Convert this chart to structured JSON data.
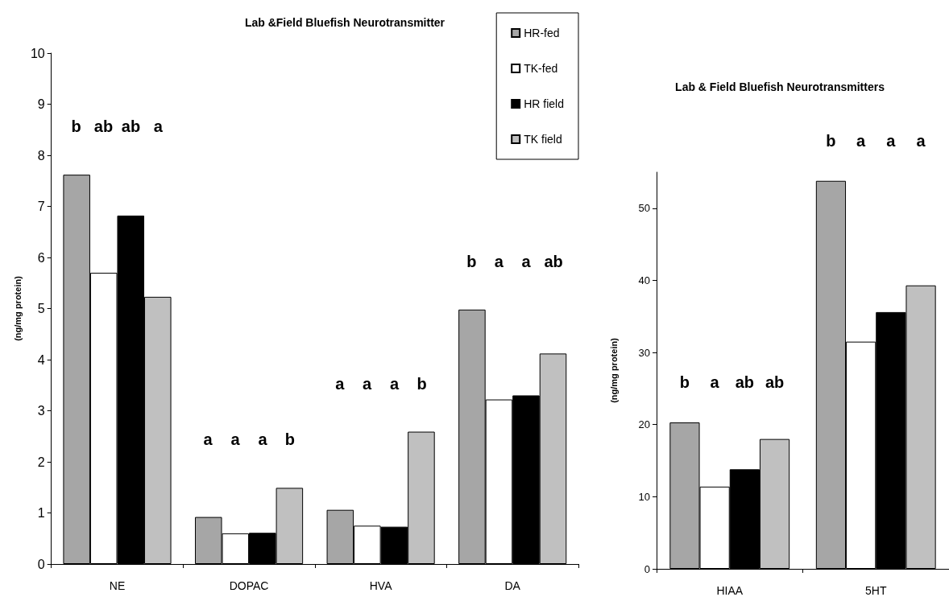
{
  "chart_data": [
    {
      "type": "bar",
      "title": "Lab &Field Bluefish Neurotransmitter",
      "ylabel": "(ng/mg protein)",
      "categories": [
        "NE",
        "DOPAC",
        "HVA",
        "DA"
      ],
      "series": [
        {
          "name": "HR-fed",
          "color": "#a6a6a6",
          "values": [
            7.62,
            0.92,
            1.06,
            4.98
          ]
        },
        {
          "name": "TK-fed",
          "color": "#ffffff",
          "values": [
            5.7,
            0.6,
            0.75,
            3.22
          ]
        },
        {
          "name": "HR field",
          "color": "#000000",
          "values": [
            6.82,
            0.61,
            0.73,
            3.3
          ]
        },
        {
          "name": "TK field",
          "color": "#c0c0c0",
          "values": [
            5.23,
            1.49,
            2.59,
            4.12
          ]
        }
      ],
      "ylim": [
        0,
        10
      ],
      "yticks": [
        0,
        1,
        2,
        3,
        4,
        5,
        6,
        7,
        8,
        9,
        10
      ],
      "grid": false,
      "legend": "top right",
      "annotations": [
        "b",
        "ab",
        "ab",
        "a",
        "a",
        "a",
        "a",
        "b",
        "a",
        "a",
        "a",
        "b",
        "b",
        "a",
        "a",
        "ab"
      ]
    },
    {
      "type": "bar",
      "title": "Lab & Field Bluefish Neurotransmitters",
      "ylabel": "(ng/mg protein)",
      "categories": [
        "HIAA",
        "5HT"
      ],
      "series": [
        {
          "color": "#a6a6a6",
          "values": [
            20.3,
            53.8
          ]
        },
        {
          "color": "#ffffff",
          "values": [
            11.4,
            31.5
          ]
        },
        {
          "color": "#000000",
          "values": [
            13.8,
            35.6
          ]
        },
        {
          "color": "#c0c0c0",
          "values": [
            18.0,
            39.3
          ]
        }
      ],
      "ylim": [
        0,
        55
      ],
      "yticks": [
        0,
        10,
        20,
        30,
        40,
        50
      ],
      "grid": false,
      "legend": false,
      "annotations": [
        "b",
        "a",
        "ab",
        "ab",
        "b",
        "a",
        "a",
        "a"
      ]
    }
  ]
}
